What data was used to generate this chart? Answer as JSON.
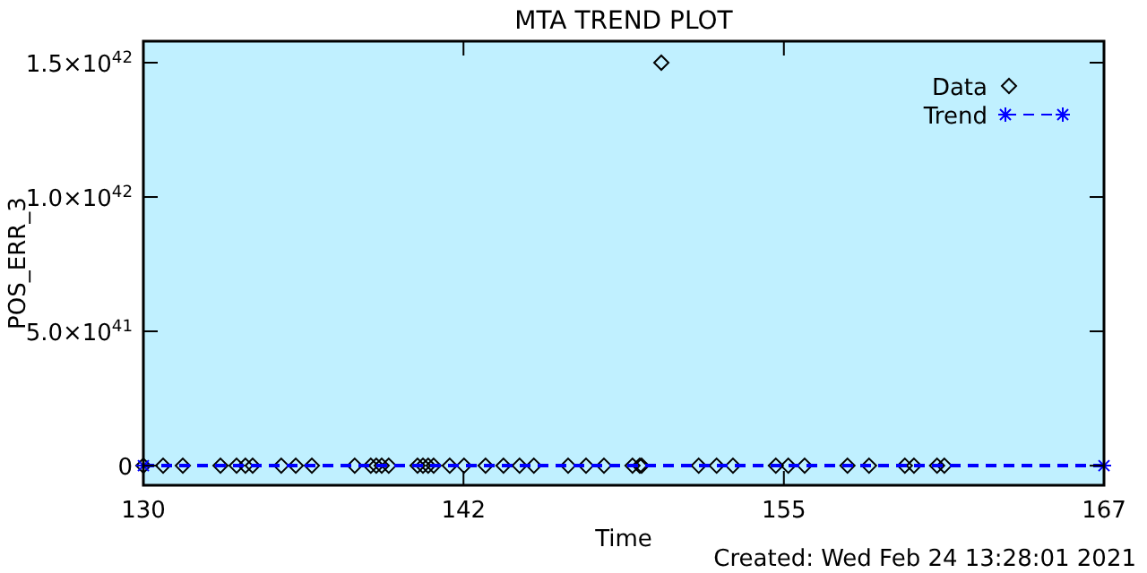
{
  "chart_data": {
    "type": "scatter",
    "title": "MTA TREND PLOT",
    "xlabel": "Time",
    "ylabel": "POS_ERR_3",
    "annotations": [
      "Created: Wed Feb 24 13:28:01 2021"
    ],
    "xlim": [
      130,
      167
    ],
    "xticks": [
      130,
      {
        "value": 142.33,
        "label": "142"
      },
      {
        "value": 154.67,
        "label": "155"
      },
      167
    ],
    "ylim": [
      -7.3e+40,
      1.58e+42
    ],
    "yticks": [
      0,
      {
        "value": 5e+41,
        "label": "5.0×10$^{41}$"
      },
      {
        "value": 1e+42,
        "label": "1.0×10$^{42}$"
      },
      {
        "value": 1.5e+42,
        "label": "1.5×10$^{42}$"
      }
    ],
    "grid": false,
    "legend": "top right",
    "series": [
      {
        "name": "Data",
        "color": "#000000",
        "marker": "diamond",
        "x": [
          130.0,
          130.76,
          131.52,
          132.97,
          133.59,
          133.93,
          134.21,
          135.31,
          135.87,
          136.49,
          138.14,
          138.76,
          138.97,
          139.18,
          139.45,
          140.56,
          140.77,
          140.97,
          141.18,
          141.8,
          142.35,
          143.18,
          143.87,
          144.49,
          145.04,
          146.36,
          147.05,
          147.74,
          148.84,
          149.12,
          149.19,
          149.95,
          151.39,
          152.08,
          152.71,
          154.36,
          154.84,
          155.47,
          157.12,
          157.95,
          159.33,
          159.68,
          160.57,
          160.85
        ],
        "values": [
          0,
          0,
          0,
          0,
          0,
          0,
          0,
          0,
          0,
          0,
          0,
          0,
          0,
          0,
          0,
          0,
          0,
          0,
          0,
          0,
          0,
          0,
          0,
          0,
          0,
          0,
          0,
          0,
          0,
          0,
          0,
          1.5e+42,
          0,
          0,
          0,
          0,
          0,
          0,
          0,
          0,
          0,
          0,
          0,
          0
        ]
      },
      {
        "name": "Trend",
        "type": "line",
        "color": "#0000ff",
        "marker": "cross",
        "line_style": "dashed",
        "x": [
          130,
          167
        ],
        "values": [
          0,
          0
        ]
      }
    ]
  }
}
